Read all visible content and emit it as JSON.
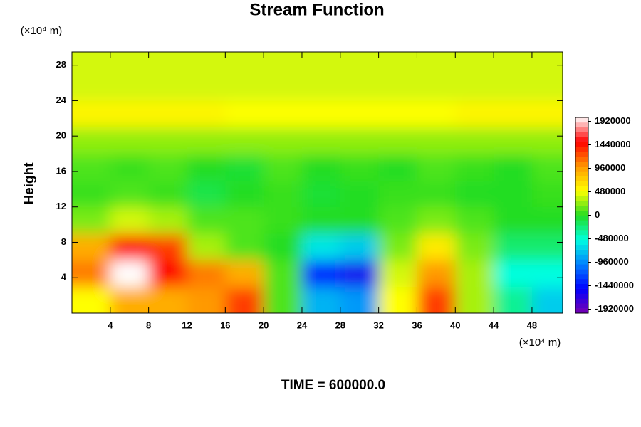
{
  "chart_data": {
    "type": "contour",
    "title": "Stream Function",
    "ylabel": "Height",
    "xlabel_unit": "(×10⁴ m)",
    "ylabel_unit": "(×10⁴ m)",
    "annotation": "TIME = 600000.0",
    "x": [
      2,
      6,
      10,
      14,
      18,
      22,
      26,
      30,
      34,
      38,
      42,
      46,
      50
    ],
    "y": [
      1.5,
      4.5,
      7.5,
      10.5,
      13.5,
      16.5,
      19.5,
      22.5,
      25.5,
      28.5
    ],
    "z": [
      [
        500000,
        900000,
        900000,
        1000000,
        1300000,
        100000,
        -800000,
        -900000,
        500000,
        1300000,
        300000,
        -300000,
        -700000
      ],
      [
        1100000,
        2000000,
        1500000,
        1100000,
        900000,
        100000,
        -1400000,
        -1600000,
        400000,
        1000000,
        300000,
        -500000,
        -500000
      ],
      [
        900000,
        1500000,
        1300000,
        300000,
        100000,
        0,
        -600000,
        -700000,
        200000,
        600000,
        200000,
        -200000,
        -200000
      ],
      [
        200000,
        400000,
        300000,
        100000,
        100000,
        50000,
        0,
        0,
        100000,
        200000,
        100000,
        0,
        0
      ],
      [
        50000,
        100000,
        50000,
        -100000,
        0,
        50000,
        -50000,
        0,
        50000,
        50000,
        0,
        0,
        50000
      ],
      [
        100000,
        50000,
        100000,
        0,
        -50000,
        100000,
        0,
        50000,
        0,
        100000,
        50000,
        0,
        100000
      ],
      [
        250000,
        250000,
        250000,
        250000,
        250000,
        250000,
        250000,
        250000,
        250000,
        250000,
        250000,
        250000,
        250000
      ],
      [
        550000,
        550000,
        550000,
        550000,
        500000,
        500000,
        500000,
        500000,
        500000,
        500000,
        550000,
        550000,
        550000
      ],
      [
        400000,
        400000,
        400000,
        400000,
        400000,
        400000,
        400000,
        400000,
        400000,
        400000,
        400000,
        400000,
        400000
      ],
      [
        400000,
        400000,
        400000,
        400000,
        400000,
        400000,
        400000,
        400000,
        400000,
        400000,
        400000,
        400000,
        400000
      ]
    ],
    "xlim": [
      0,
      51.2
    ],
    "ylim": [
      0,
      29.5
    ],
    "xticks": [
      4,
      8,
      12,
      16,
      20,
      24,
      28,
      32,
      36,
      40,
      44,
      48
    ],
    "yticks": [
      4,
      8,
      12,
      16,
      20,
      24,
      28
    ],
    "clim": [
      -2000000,
      2000000
    ],
    "cticks": [
      -1920000,
      -1440000,
      -960000,
      -480000,
      0,
      480000,
      960000,
      1440000,
      1920000
    ],
    "colors": [
      "#7a00b0",
      "#0000ff",
      "#0080ff",
      "#00ffe0",
      "#22dd22",
      "#ffff00",
      "#ff9900",
      "#ff0000",
      "#ffffff"
    ]
  }
}
